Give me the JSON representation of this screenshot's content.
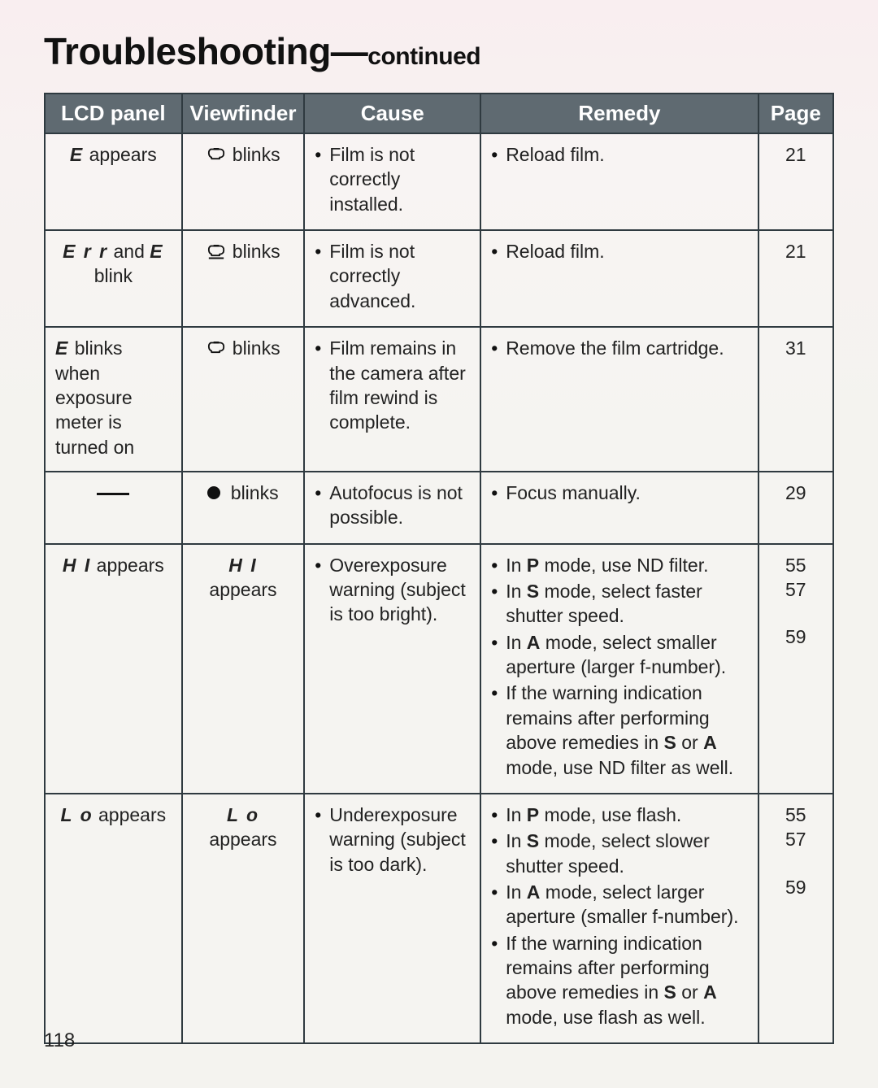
{
  "heading": {
    "main": "Troubleshooting—",
    "sub": "continued"
  },
  "page_number": "118",
  "columns": [
    "LCD panel",
    "Viewfinder",
    "Cause",
    "Remedy",
    "Page"
  ],
  "rows": [
    {
      "lcd": {
        "segments": [
          "E"
        ],
        "after": " appears",
        "align": "center"
      },
      "viewfinder": {
        "icon": "cartridge",
        "after": " blinks"
      },
      "cause": [
        "Film is not correctly installed."
      ],
      "remedy": [
        {
          "text": "Reload film."
        }
      ],
      "pages": [
        "21"
      ]
    },
    {
      "lcd": {
        "html": "<span class='seg'>E r r</span> and <span class='seg'>E</span> blink",
        "align": "center"
      },
      "viewfinder": {
        "icon": "cartridge-under",
        "after": " blinks"
      },
      "cause": [
        "Film is not correctly advanced."
      ],
      "remedy": [
        {
          "text": "Reload film."
        }
      ],
      "pages": [
        "21"
      ]
    },
    {
      "lcd": {
        "html": "<span class='seg'>E</span> blinks when exposure meter is turned on",
        "align": "left"
      },
      "viewfinder": {
        "icon": "cartridge",
        "after": " blinks"
      },
      "cause": [
        "Film remains in the camera after film rewind is complete."
      ],
      "remedy": [
        {
          "text": "Remove the film cartridge."
        }
      ],
      "pages": [
        "31"
      ]
    },
    {
      "lcd": {
        "dash": true,
        "align": "center"
      },
      "viewfinder": {
        "icon": "dot",
        "after": " blinks"
      },
      "cause": [
        "Autofocus is not possible."
      ],
      "remedy": [
        {
          "text": "Focus manually."
        }
      ],
      "pages": [
        "29"
      ]
    },
    {
      "lcd": {
        "segments": [
          "H I"
        ],
        "after": " appears",
        "align": "center"
      },
      "viewfinder": {
        "html": "<span class='seg'>H I</span> appears"
      },
      "cause": [
        "Overexposure warning (subject is too bright)."
      ],
      "remedy": [
        {
          "html": "In <span class='bold'>P</span> mode, use ND filter."
        },
        {
          "html": "In <span class='bold'>S</span> mode, select faster shutter speed."
        },
        {
          "html": "In <span class='bold'>A</span> mode, select smaller aperture (larger f-number)."
        },
        {
          "html": "If the warning indication remains after performing above remedies in <span class='bold'>S</span> or <span class='bold'>A</span> mode, use ND filter as well."
        }
      ],
      "pages": [
        "55",
        "57",
        "",
        "59"
      ]
    },
    {
      "lcd": {
        "segments": [
          "L o"
        ],
        "after": " appears",
        "align": "center"
      },
      "viewfinder": {
        "html": "<span class='seg'>L o</span> appears"
      },
      "cause": [
        "Underexposure warning (subject is too dark)."
      ],
      "remedy": [
        {
          "html": "In <span class='bold'>P</span> mode, use flash."
        },
        {
          "html": "In <span class='bold'>S</span> mode, select slower shutter speed."
        },
        {
          "html": "In <span class='bold'>A</span> mode, select larger aperture (smaller f-number)."
        },
        {
          "html": "If the warning indication remains after performing above remedies in <span class='bold'>S</span> or <span class='bold'>A</span> mode, use flash as well."
        }
      ],
      "pages": [
        "55",
        "57",
        "",
        "59"
      ]
    }
  ],
  "style": {
    "header_bg": "#5f6a71",
    "header_text": "#ffffff",
    "border_color": "#2f3a40",
    "body_font_size": 23,
    "header_font_size": 26,
    "title_font_size": 46,
    "title_sub_font_size": 30
  }
}
